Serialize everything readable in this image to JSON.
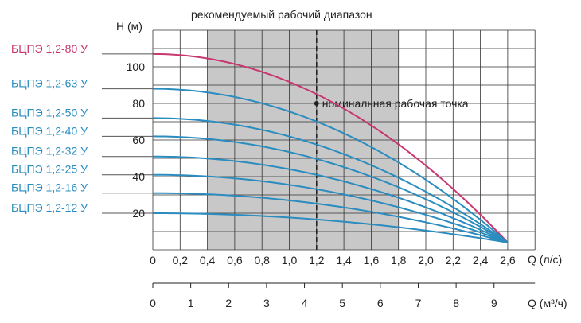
{
  "chart_data": {
    "type": "line",
    "title": "рекомендуемый рабочий диапазон",
    "ylabel": "Н (м)",
    "xlabel": "Q (л/с)",
    "xlabel2": "Q (м³/ч)",
    "xlim": [
      0,
      2.8
    ],
    "ylim": [
      0,
      120
    ],
    "x_ticks": [
      "0",
      "0,2",
      "0,4",
      "0,6",
      "0,8",
      "1,0",
      "1,2",
      "1,4",
      "1,6",
      "1,8",
      "2,0",
      "2,2",
      "2,4",
      "2,6"
    ],
    "x_tick_values": [
      0,
      0.2,
      0.4,
      0.6,
      0.8,
      1.0,
      1.2,
      1.4,
      1.6,
      1.8,
      2.0,
      2.2,
      2.4,
      2.6
    ],
    "y_ticks": [
      "20",
      "40",
      "60",
      "80",
      "100"
    ],
    "y_tick_values": [
      20,
      40,
      60,
      80,
      100
    ],
    "x2_ticks": [
      "0",
      "1",
      "2",
      "3",
      "4",
      "5",
      "6",
      "7",
      "8",
      "9"
    ],
    "x2_tick_values": [
      0,
      1,
      2,
      3,
      4,
      5,
      6,
      7,
      8,
      9
    ],
    "grid": true,
    "recommended_range": [
      0.4,
      1.8
    ],
    "nominal_q": 1.2,
    "nominal_point": {
      "x": 1.2,
      "y": 80,
      "label": "номинальная рабочая точка"
    },
    "end_point": {
      "x": 2.6,
      "y": 4
    },
    "series": [
      {
        "name": "БЦПЭ 1,2-80 У",
        "h0": 107,
        "color": "#c8376f",
        "highlight": true
      },
      {
        "name": "БЦПЭ 1,2-63 У",
        "h0": 88,
        "color": "#2a8cbf"
      },
      {
        "name": "БЦПЭ 1,2-50 У",
        "h0": 72,
        "color": "#2a8cbf"
      },
      {
        "name": "БЦПЭ 1,2-40 У",
        "h0": 62,
        "color": "#2a8cbf"
      },
      {
        "name": "БЦПЭ 1,2-32 У",
        "h0": 51,
        "color": "#2a8cbf"
      },
      {
        "name": "БЦПЭ 1,2-25 У",
        "h0": 41,
        "color": "#2a8cbf"
      },
      {
        "name": "БЦПЭ 1,2-16 У",
        "h0": 31,
        "color": "#2a8cbf"
      },
      {
        "name": "БЦПЭ 1,2-12 У",
        "h0": 20,
        "color": "#2a8cbf"
      }
    ],
    "colors": {
      "range_fill": "#c8c8c8",
      "grid": "#333333",
      "axis": "#222222",
      "highlight": "#c8376f",
      "series": "#2a8cbf"
    }
  }
}
